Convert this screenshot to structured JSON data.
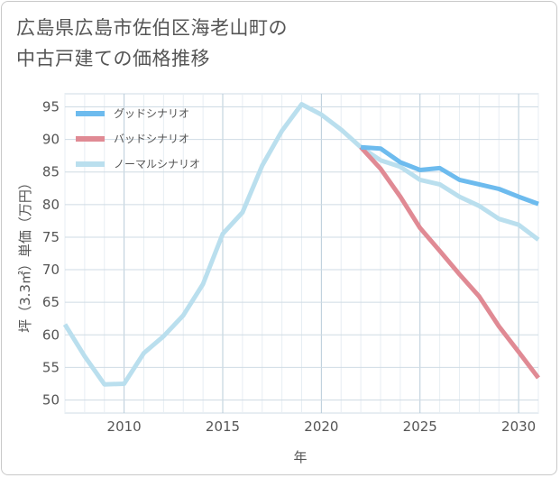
{
  "title_line1": "広島県広島市佐伯区海老山町の",
  "title_line2": "中古戸建ての価格推移",
  "chart_data": {
    "type": "line",
    "title": "広島県広島市佐伯区海老山町の中古戸建ての価格推移",
    "xlabel": "年",
    "ylabel": "坪（3.3㎡）単価（万円）",
    "xlim": [
      2007,
      2031
    ],
    "ylim": [
      48,
      97
    ],
    "xticks": [
      2010,
      2015,
      2020,
      2025,
      2030
    ],
    "yticks": [
      50,
      55,
      60,
      65,
      70,
      75,
      80,
      85,
      90,
      95
    ],
    "grid": true,
    "legend_position": "top-left",
    "series": [
      {
        "name": "グッドシナリオ",
        "color": "#6dbbee",
        "x": [
          2022,
          2023,
          2024,
          2025,
          2026,
          2027,
          2028,
          2029,
          2030,
          2031
        ],
        "y": [
          88.8,
          88.6,
          86.5,
          85.3,
          85.6,
          83.8,
          83.1,
          82.4,
          81.2,
          80.1
        ]
      },
      {
        "name": "バッドシナリオ",
        "color": "#e08a94",
        "x": [
          2022,
          2023,
          2024,
          2025,
          2026,
          2027,
          2028,
          2029,
          2030,
          2031
        ],
        "y": [
          88.8,
          85.5,
          81.2,
          76.4,
          72.9,
          69.3,
          65.9,
          61.3,
          57.4,
          53.4
        ]
      },
      {
        "name": "ノーマルシナリオ",
        "color": "#badfee",
        "x": [
          2007,
          2008,
          2009,
          2010,
          2011,
          2012,
          2013,
          2014,
          2015,
          2016,
          2017,
          2018,
          2019,
          2020,
          2021,
          2022,
          2023,
          2024,
          2025,
          2026,
          2027,
          2028,
          2029,
          2030,
          2031
        ],
        "y": [
          61.6,
          56.7,
          52.4,
          52.5,
          57.2,
          59.8,
          63.0,
          67.8,
          75.5,
          78.8,
          86.0,
          91.3,
          95.4,
          93.8,
          91.5,
          88.8,
          86.8,
          85.8,
          83.8,
          83.1,
          81.2,
          79.8,
          77.8,
          76.9,
          74.6
        ]
      }
    ]
  }
}
